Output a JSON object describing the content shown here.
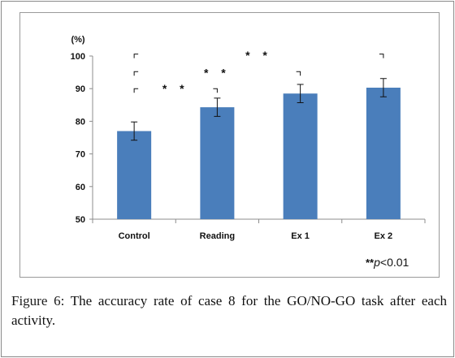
{
  "chart_data": {
    "type": "bar",
    "ylabel": "(%)",
    "ylim": [
      50,
      100
    ],
    "yticks": [
      50,
      60,
      70,
      80,
      90,
      100
    ],
    "categories": [
      "Control",
      "Reading",
      "Ex 1",
      "Ex 2"
    ],
    "values": [
      77,
      84.3,
      88.5,
      90.3
    ],
    "error": [
      2.8,
      2.8,
      2.8,
      2.8
    ],
    "bar_color": "#4a7ebb",
    "grid": false,
    "significance": [
      {
        "from": "Control",
        "to": "Reading",
        "label": "* *"
      },
      {
        "from": "Control",
        "to": "Ex 1",
        "label": "* *"
      },
      {
        "from": "Control",
        "to": "Ex 2",
        "label": "* *"
      }
    ]
  },
  "note": {
    "stars": "**",
    "p": "p",
    "threshold": "<0.01"
  },
  "caption": {
    "label": "Figure 6:",
    "text": "The accuracy rate of case 8 for the GO/NO-GO task after each activity."
  }
}
